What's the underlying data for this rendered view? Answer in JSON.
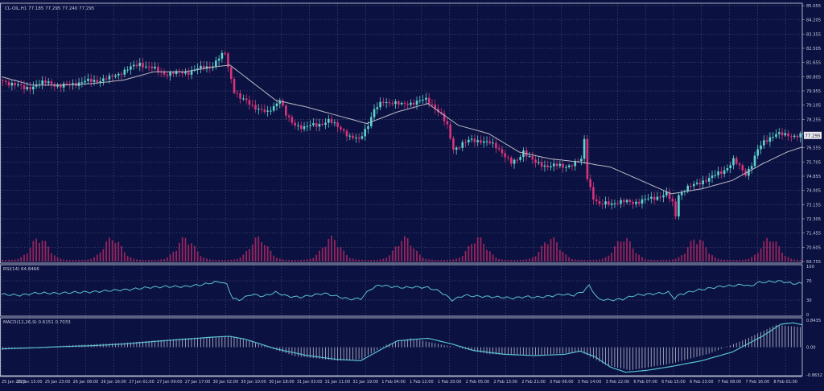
{
  "colors": {
    "background": "#0b1140",
    "grid": "#5a6085",
    "bull": "#5fd4cf",
    "bear": "#d8347a",
    "ma": "#b9b9c6",
    "volume": "#b02864",
    "rsi": "#5bc2d2",
    "macd_signal": "#5bc2d2",
    "macd_hist": "#a9acc4",
    "text": "#c9cde2",
    "price_tag_bg": "#e8e8ee",
    "price_tag_text": "#10153f"
  },
  "main": {
    "header": "CL-OIL,H1 77.185 77.295 77.240 77.295",
    "price_tag": "77.295"
  },
  "rsi": {
    "header": "RSI(14) 64.8466"
  },
  "macd": {
    "header": "MACD(12,26,9) 0.6151 0.7033"
  },
  "chart_data": [
    {
      "type": "candlestick",
      "series_name": "CL-OIL,H1",
      "price_axis_labels": [
        "85.055",
        "84.205",
        "83.355",
        "82.505",
        "81.655",
        "80.805",
        "79.955",
        "79.105",
        "78.255",
        "77.405",
        "76.555",
        "75.705",
        "74.855",
        "74.005",
        "73.155",
        "72.305",
        "71.455",
        "70.605",
        "69.755"
      ],
      "ylim": [
        69.755,
        85.055
      ],
      "time_labels": [
        "25 Jan 2023",
        "25 Jan 15:00",
        "25 Jan 23:00",
        "26 Jan 08:00",
        "26 Jan 16:00",
        "27 Jan 01:00",
        "27 Jan 09:00",
        "27 Jan 17:00",
        "30 Jan 02:00",
        "30 Jan 10:00",
        "30 Jan 18:00",
        "31 Jan 03:00",
        "31 Jan 11:00",
        "31 Jan 19:00",
        "1 Feb 04:00",
        "1 Feb 12:00",
        "1 Feb 20:00",
        "2 Feb 05:00",
        "2 Feb 13:00",
        "2 Feb 21:00",
        "3 Feb 06:00",
        "3 Feb 14:00",
        "3 Feb 22:00",
        "6 Feb 07:00",
        "6 Feb 15:00",
        "6 Feb 23:00",
        "7 Feb 08:00",
        "7 Feb 16:00",
        "8 Feb 01:00"
      ],
      "close_path": [
        [
          0,
          80.6
        ],
        [
          4,
          80.4
        ],
        [
          8,
          80.1
        ],
        [
          12,
          80.3
        ],
        [
          16,
          80.5
        ],
        [
          20,
          80.2
        ],
        [
          24,
          80.4
        ],
        [
          28,
          80.5
        ],
        [
          32,
          80.6
        ],
        [
          36,
          80.7
        ],
        [
          40,
          81.1
        ],
        [
          44,
          81.4
        ],
        [
          46,
          81.6
        ],
        [
          50,
          81.3
        ],
        [
          54,
          81.0
        ],
        [
          58,
          81.0
        ],
        [
          62,
          81.1
        ],
        [
          66,
          81.3
        ],
        [
          70,
          81.5
        ],
        [
          72,
          81.9
        ],
        [
          74,
          82.2
        ],
        [
          75,
          81.4
        ],
        [
          77,
          80.0
        ],
        [
          79,
          79.5
        ],
        [
          81,
          79.3
        ],
        [
          84,
          79.0
        ],
        [
          88,
          78.6
        ],
        [
          92,
          79.5
        ],
        [
          94,
          78.5
        ],
        [
          96,
          78.0
        ],
        [
          100,
          77.8
        ],
        [
          104,
          77.9
        ],
        [
          108,
          78.2
        ],
        [
          110,
          77.9
        ],
        [
          113,
          77.6
        ],
        [
          115,
          77.2
        ],
        [
          118,
          77.0
        ],
        [
          121,
          78.0
        ],
        [
          123,
          78.8
        ],
        [
          126,
          79.3
        ],
        [
          129,
          79.3
        ],
        [
          132,
          79.1
        ],
        [
          136,
          79.3
        ],
        [
          140,
          79.4
        ],
        [
          143,
          79.0
        ],
        [
          145,
          78.5
        ],
        [
          147,
          77.8
        ],
        [
          149,
          76.5
        ],
        [
          152,
          76.8
        ],
        [
          155,
          77.0
        ],
        [
          158,
          77.0
        ],
        [
          161,
          76.8
        ],
        [
          164,
          76.5
        ],
        [
          166,
          76.1
        ],
        [
          168,
          75.6
        ],
        [
          170,
          75.8
        ],
        [
          172,
          76.4
        ],
        [
          174,
          76.0
        ],
        [
          176,
          75.6
        ],
        [
          179,
          75.5
        ],
        [
          182,
          75.5
        ],
        [
          185,
          75.4
        ],
        [
          188,
          75.6
        ],
        [
          191,
          75.8
        ],
        [
          192,
          77.0
        ],
        [
          193,
          74.8
        ],
        [
          195,
          73.6
        ],
        [
          197,
          73.1
        ],
        [
          199,
          73.2
        ],
        [
          202,
          73.3
        ],
        [
          205,
          73.3
        ],
        [
          208,
          73.3
        ],
        [
          211,
          73.4
        ],
        [
          214,
          73.5
        ],
        [
          217,
          73.7
        ],
        [
          219,
          73.8
        ],
        [
          221,
          73.2
        ],
        [
          222,
          72.5
        ],
        [
          223,
          73.8
        ],
        [
          225,
          74.1
        ],
        [
          228,
          74.3
        ],
        [
          231,
          74.6
        ],
        [
          234,
          74.8
        ],
        [
          237,
          75.1
        ],
        [
          239,
          75.4
        ],
        [
          241,
          75.8
        ],
        [
          243,
          75.4
        ],
        [
          245,
          75.0
        ],
        [
          247,
          75.6
        ],
        [
          249,
          76.4
        ],
        [
          251,
          76.9
        ],
        [
          253,
          77.2
        ],
        [
          255,
          77.4
        ],
        [
          257,
          77.3
        ],
        [
          260,
          77.3
        ],
        [
          263,
          77.295
        ]
      ],
      "moving_average": [
        [
          0,
          80.8
        ],
        [
          10,
          80.3
        ],
        [
          20,
          80.3
        ],
        [
          30,
          80.4
        ],
        [
          40,
          80.6
        ],
        [
          50,
          81.1
        ],
        [
          60,
          81.1
        ],
        [
          70,
          81.4
        ],
        [
          75,
          81.5
        ],
        [
          80,
          80.8
        ],
        [
          90,
          79.4
        ],
        [
          100,
          79.0
        ],
        [
          110,
          78.5
        ],
        [
          120,
          78.0
        ],
        [
          130,
          78.7
        ],
        [
          140,
          79.2
        ],
        [
          150,
          77.9
        ],
        [
          160,
          77.4
        ],
        [
          170,
          76.3
        ],
        [
          180,
          75.9
        ],
        [
          190,
          75.7
        ],
        [
          200,
          75.4
        ],
        [
          210,
          74.6
        ],
        [
          215,
          74.2
        ],
        [
          220,
          73.8
        ],
        [
          230,
          74.1
        ],
        [
          240,
          74.6
        ],
        [
          250,
          75.6
        ],
        [
          258,
          76.3
        ],
        [
          263,
          76.6
        ]
      ]
    },
    {
      "type": "line",
      "series_name": "RSI(14)",
      "value": 64.8466,
      "y_axis_labels": [
        "100",
        "70",
        "30",
        "0"
      ],
      "ylim": [
        0,
        100
      ],
      "values": [
        [
          0,
          42
        ],
        [
          6,
          40
        ],
        [
          12,
          45
        ],
        [
          18,
          44
        ],
        [
          24,
          46
        ],
        [
          30,
          47
        ],
        [
          36,
          50
        ],
        [
          42,
          52
        ],
        [
          48,
          56
        ],
        [
          54,
          58
        ],
        [
          60,
          58
        ],
        [
          66,
          62
        ],
        [
          70,
          67
        ],
        [
          72,
          68
        ],
        [
          74,
          62
        ],
        [
          76,
          33
        ],
        [
          78,
          30
        ],
        [
          82,
          42
        ],
        [
          86,
          38
        ],
        [
          90,
          46
        ],
        [
          94,
          38
        ],
        [
          98,
          36
        ],
        [
          102,
          40
        ],
        [
          106,
          44
        ],
        [
          110,
          38
        ],
        [
          114,
          32
        ],
        [
          118,
          33
        ],
        [
          121,
          52
        ],
        [
          124,
          61
        ],
        [
          128,
          58
        ],
        [
          132,
          56
        ],
        [
          136,
          57
        ],
        [
          140,
          56
        ],
        [
          144,
          48
        ],
        [
          148,
          30
        ],
        [
          152,
          40
        ],
        [
          156,
          38
        ],
        [
          160,
          37
        ],
        [
          164,
          36
        ],
        [
          168,
          34
        ],
        [
          172,
          37
        ],
        [
          176,
          36
        ],
        [
          180,
          38
        ],
        [
          184,
          42
        ],
        [
          188,
          40
        ],
        [
          191,
          48
        ],
        [
          193,
          60
        ],
        [
          196,
          32
        ],
        [
          200,
          30
        ],
        [
          204,
          32
        ],
        [
          208,
          40
        ],
        [
          212,
          42
        ],
        [
          216,
          44
        ],
        [
          219,
          46
        ],
        [
          221,
          34
        ],
        [
          223,
          42
        ],
        [
          228,
          50
        ],
        [
          232,
          54
        ],
        [
          236,
          58
        ],
        [
          240,
          60
        ],
        [
          244,
          62
        ],
        [
          246,
          58
        ],
        [
          248,
          66
        ],
        [
          252,
          68
        ],
        [
          256,
          69
        ],
        [
          260,
          64
        ],
        [
          263,
          64.85
        ]
      ]
    },
    {
      "type": "bar+line",
      "series_name": "MACD(12,26,9)",
      "macd_value": 0.6151,
      "signal_value": 0.7033,
      "y_axis_labels": [
        "0.8435",
        "0.00",
        "-0.8632"
      ],
      "ylim": [
        -0.8632,
        0.8435
      ],
      "signal": [
        [
          0,
          -0.05
        ],
        [
          10,
          -0.02
        ],
        [
          20,
          0.02
        ],
        [
          30,
          0.05
        ],
        [
          40,
          0.1
        ],
        [
          50,
          0.18
        ],
        [
          60,
          0.25
        ],
        [
          70,
          0.32
        ],
        [
          75,
          0.34
        ],
        [
          80,
          0.25
        ],
        [
          90,
          -0.05
        ],
        [
          100,
          -0.25
        ],
        [
          110,
          -0.38
        ],
        [
          118,
          -0.42
        ],
        [
          125,
          -0.05
        ],
        [
          130,
          0.2
        ],
        [
          140,
          0.28
        ],
        [
          148,
          0.1
        ],
        [
          155,
          -0.1
        ],
        [
          165,
          -0.22
        ],
        [
          175,
          -0.26
        ],
        [
          185,
          -0.22
        ],
        [
          190,
          -0.12
        ],
        [
          195,
          -0.3
        ],
        [
          200,
          -0.62
        ],
        [
          205,
          -0.78
        ],
        [
          212,
          -0.72
        ],
        [
          220,
          -0.6
        ],
        [
          230,
          -0.42
        ],
        [
          240,
          -0.15
        ],
        [
          250,
          0.35
        ],
        [
          256,
          0.72
        ],
        [
          260,
          0.76
        ],
        [
          263,
          0.7
        ]
      ],
      "histogram": [
        [
          0,
          -0.08
        ],
        [
          20,
          0.05
        ],
        [
          40,
          0.14
        ],
        [
          60,
          0.28
        ],
        [
          74,
          0.35
        ],
        [
          80,
          0.22
        ],
        [
          96,
          -0.28
        ],
        [
          110,
          -0.42
        ],
        [
          118,
          -0.36
        ],
        [
          126,
          0.08
        ],
        [
          134,
          0.28
        ],
        [
          146,
          0.05
        ],
        [
          160,
          -0.22
        ],
        [
          176,
          -0.24
        ],
        [
          190,
          -0.15
        ],
        [
          198,
          -0.55
        ],
        [
          206,
          -0.72
        ],
        [
          220,
          -0.5
        ],
        [
          232,
          -0.2
        ],
        [
          244,
          0.25
        ],
        [
          254,
          0.7
        ],
        [
          263,
          0.62
        ]
      ]
    }
  ]
}
